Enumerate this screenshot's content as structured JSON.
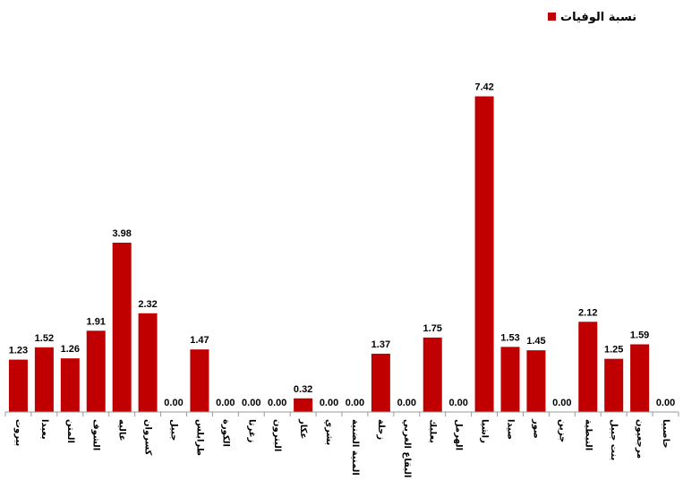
{
  "chart_data": {
    "type": "bar",
    "legend": {
      "label": "نسبة الوفيات",
      "placement": "top-right"
    },
    "bar_color": "#c00000",
    "categories": [
      "بيروت",
      "بعبدا",
      "المتن",
      "الشوف",
      "عاليه",
      "كسروان",
      "جبيل",
      "طرابلس",
      "الكورة",
      "زغرتا",
      "البترون",
      "عكار",
      "بشري",
      "المنية الضنية",
      "زحلة",
      "البقاع الغربي",
      "بعلبك",
      "الهرمل",
      "راشيا",
      "صيدا",
      "صور",
      "جزين",
      "النبطية",
      "بنت جبيل",
      "مرجعيون",
      "حاصبيا"
    ],
    "values": [
      1.23,
      1.52,
      1.26,
      1.91,
      3.98,
      2.32,
      0.0,
      1.47,
      0.0,
      0.0,
      0.0,
      0.32,
      0.0,
      0.0,
      1.37,
      0.0,
      1.75,
      0.0,
      7.42,
      1.53,
      1.45,
      0.0,
      2.12,
      1.25,
      1.59,
      0.0
    ],
    "data_labels": [
      "1.23",
      "1.52",
      "1.26",
      "1.91",
      "3.98",
      "2.32",
      "0.00",
      "1.47",
      "0.00",
      "0.00",
      "0.00",
      "0.32",
      "0.00",
      "0.00",
      "1.37",
      "0.00",
      "1.75",
      "0.00",
      "7.42",
      "1.53",
      "1.45",
      "0.00",
      "2.12",
      "1.25",
      "1.59",
      "0.00"
    ],
    "ylim": [
      0,
      8
    ],
    "grid": false,
    "title": "",
    "xlabel": "",
    "ylabel": ""
  }
}
